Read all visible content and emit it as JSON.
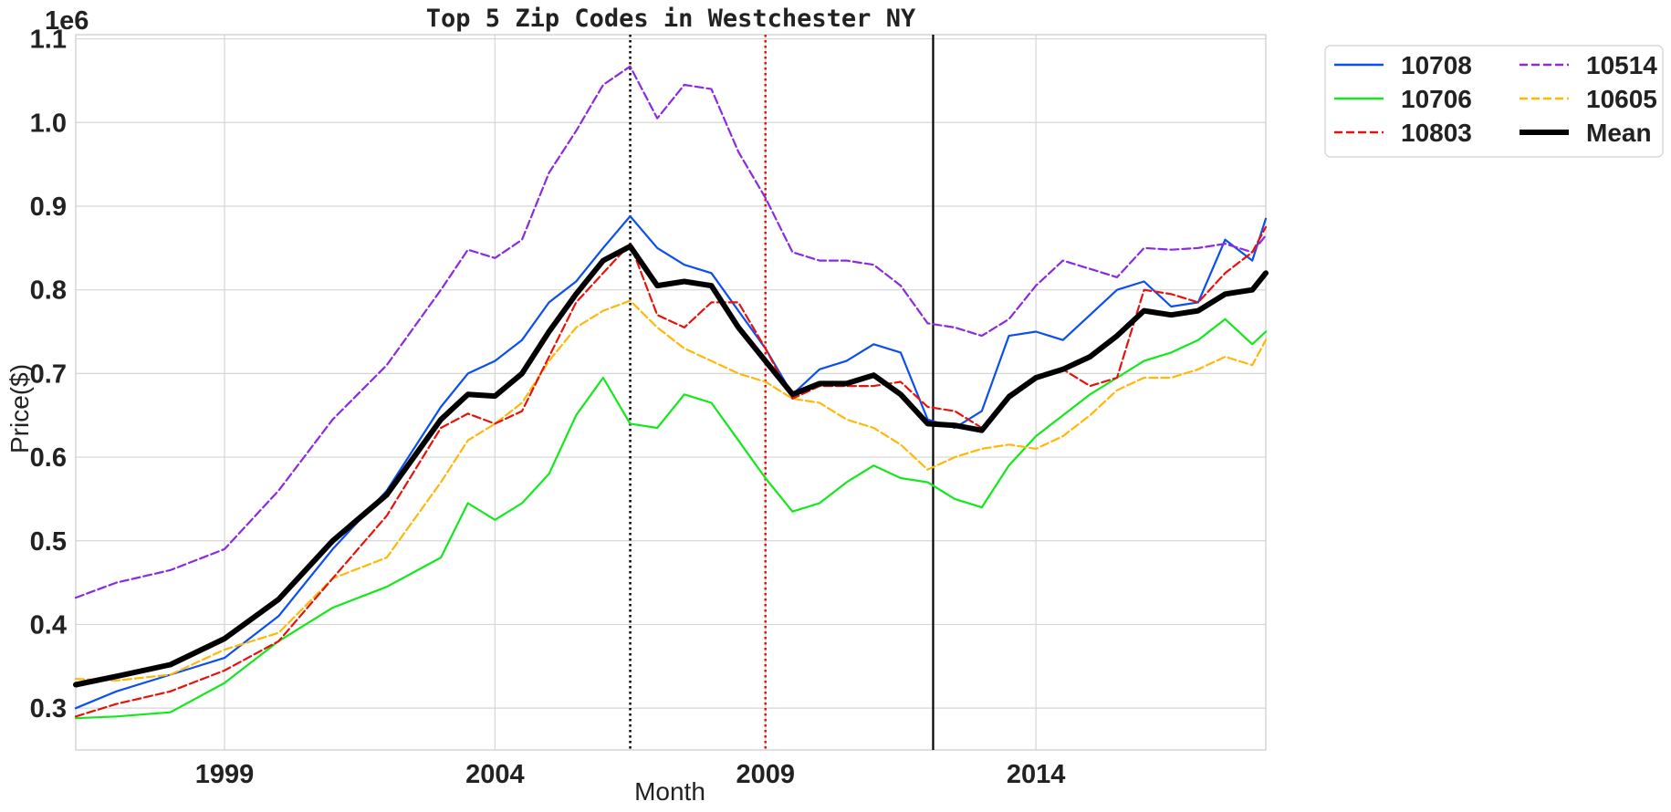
{
  "chart_data": {
    "type": "line",
    "title": "Top 5 Zip Codes in Westchester NY",
    "xlabel": "Month",
    "ylabel": "Price($)",
    "y_multiplier_label": "1e6",
    "xlim": [
      1996.25,
      2018.25
    ],
    "ylim": [
      0.25,
      1.105
    ],
    "x_ticks": [
      1999,
      2004,
      2009,
      2014
    ],
    "y_ticks": [
      0.3,
      0.4,
      0.5,
      0.6,
      0.7,
      0.8,
      0.9,
      1.0,
      1.1
    ],
    "x_tick_labels": [
      "1999",
      "2004",
      "2009",
      "2014"
    ],
    "y_tick_labels": [
      "0.3",
      "0.4",
      "0.5",
      "0.6",
      "0.7",
      "0.8",
      "0.9",
      "1.0",
      "1.1"
    ],
    "grid": true,
    "legend_position": "outside-upper-right",
    "legend_columns": 2,
    "vertical_lines": [
      {
        "x": 2006.5,
        "color": "#000000",
        "style": "dotted"
      },
      {
        "x": 2009.0,
        "color": "#e8120c",
        "style": "dotted"
      },
      {
        "x": 2012.1,
        "color": "#000000",
        "style": "solid"
      }
    ],
    "series": [
      {
        "name": "10708",
        "color": "#0b4ff0",
        "style": "solid",
        "width": 2.2,
        "x": [
          1996.25,
          1997,
          1998,
          1999,
          2000,
          2001,
          2002,
          2003,
          2003.5,
          2004,
          2004.5,
          2005,
          2005.5,
          2006,
          2006.5,
          2007,
          2007.5,
          2008,
          2008.5,
          2009,
          2009.5,
          2010,
          2010.5,
          2011,
          2011.5,
          2012,
          2012.5,
          2013,
          2013.5,
          2014,
          2014.5,
          2015,
          2015.5,
          2016,
          2016.5,
          2017,
          2017.5,
          2018,
          2018.25
        ],
        "y": [
          0.3,
          0.32,
          0.34,
          0.36,
          0.41,
          0.49,
          0.56,
          0.66,
          0.7,
          0.715,
          0.74,
          0.785,
          0.81,
          0.85,
          0.888,
          0.85,
          0.83,
          0.82,
          0.775,
          0.73,
          0.675,
          0.705,
          0.715,
          0.735,
          0.725,
          0.645,
          0.635,
          0.655,
          0.745,
          0.75,
          0.74,
          0.77,
          0.8,
          0.81,
          0.78,
          0.785,
          0.86,
          0.835,
          0.885
        ]
      },
      {
        "name": "10514",
        "color": "#8a2be2",
        "style": "dashed",
        "width": 2.2,
        "x": [
          1996.25,
          1997,
          1998,
          1999,
          2000,
          2001,
          2002,
          2003,
          2003.5,
          2004,
          2004.5,
          2005,
          2005.5,
          2006,
          2006.5,
          2007,
          2007.5,
          2008,
          2008.5,
          2009,
          2009.5,
          2010,
          2010.5,
          2011,
          2011.5,
          2012,
          2012.5,
          2013,
          2013.5,
          2014,
          2014.5,
          2015,
          2015.5,
          2016,
          2016.5,
          2017,
          2017.5,
          2018,
          2018.25
        ],
        "y": [
          0.432,
          0.45,
          0.465,
          0.49,
          0.56,
          0.645,
          0.71,
          0.8,
          0.848,
          0.838,
          0.86,
          0.94,
          0.99,
          1.045,
          1.067,
          1.005,
          1.045,
          1.04,
          0.965,
          0.91,
          0.845,
          0.835,
          0.835,
          0.83,
          0.805,
          0.76,
          0.755,
          0.745,
          0.765,
          0.805,
          0.835,
          0.825,
          0.815,
          0.85,
          0.848,
          0.85,
          0.855,
          0.845,
          0.865
        ]
      },
      {
        "name": "10706",
        "color": "#14e81c",
        "style": "solid",
        "width": 2.2,
        "x": [
          1996.25,
          1997,
          1998,
          1999,
          2000,
          2001,
          2002,
          2003,
          2003.5,
          2004,
          2004.5,
          2005,
          2005.5,
          2006,
          2006.5,
          2007,
          2007.5,
          2008,
          2008.5,
          2009,
          2009.5,
          2010,
          2010.5,
          2011,
          2011.5,
          2012,
          2012.5,
          2013,
          2013.5,
          2014,
          2014.5,
          2015,
          2015.5,
          2016,
          2016.5,
          2017,
          2017.5,
          2018,
          2018.25
        ],
        "y": [
          0.288,
          0.29,
          0.295,
          0.33,
          0.38,
          0.42,
          0.445,
          0.48,
          0.545,
          0.525,
          0.545,
          0.58,
          0.65,
          0.695,
          0.64,
          0.635,
          0.675,
          0.665,
          0.62,
          0.575,
          0.535,
          0.545,
          0.57,
          0.59,
          0.575,
          0.57,
          0.55,
          0.54,
          0.59,
          0.625,
          0.65,
          0.675,
          0.695,
          0.715,
          0.725,
          0.74,
          0.765,
          0.735,
          0.75
        ]
      },
      {
        "name": "10605",
        "color": "#ffb808",
        "style": "dashed",
        "width": 2.2,
        "x": [
          1996.25,
          1997,
          1998,
          1999,
          2000,
          2001,
          2002,
          2003,
          2003.5,
          2004,
          2004.5,
          2005,
          2005.5,
          2006,
          2006.5,
          2007,
          2007.5,
          2008,
          2008.5,
          2009,
          2009.5,
          2010,
          2010.5,
          2011,
          2011.5,
          2012,
          2012.5,
          2013,
          2013.5,
          2014,
          2014.5,
          2015,
          2015.5,
          2016,
          2016.5,
          2017,
          2017.5,
          2018,
          2018.25
        ],
        "y": [
          0.335,
          0.333,
          0.34,
          0.37,
          0.39,
          0.455,
          0.48,
          0.57,
          0.62,
          0.64,
          0.665,
          0.715,
          0.755,
          0.775,
          0.787,
          0.755,
          0.73,
          0.715,
          0.7,
          0.69,
          0.67,
          0.665,
          0.645,
          0.635,
          0.615,
          0.585,
          0.6,
          0.61,
          0.615,
          0.61,
          0.625,
          0.65,
          0.68,
          0.695,
          0.695,
          0.705,
          0.72,
          0.71,
          0.74
        ]
      },
      {
        "name": "10803",
        "color": "#e8120c",
        "style": "dashed",
        "width": 2.2,
        "x": [
          1996.25,
          1997,
          1998,
          1999,
          2000,
          2001,
          2002,
          2003,
          2003.5,
          2004,
          2004.5,
          2005,
          2005.5,
          2006,
          2006.5,
          2007,
          2007.5,
          2008,
          2008.5,
          2009,
          2009.5,
          2010,
          2010.5,
          2011,
          2011.5,
          2012,
          2012.5,
          2013,
          2013.5,
          2014,
          2014.5,
          2015,
          2015.5,
          2016,
          2016.5,
          2017,
          2017.5,
          2018,
          2018.25
        ],
        "y": [
          0.29,
          0.305,
          0.32,
          0.345,
          0.38,
          0.455,
          0.53,
          0.635,
          0.652,
          0.64,
          0.655,
          0.72,
          0.785,
          0.82,
          0.855,
          0.77,
          0.755,
          0.785,
          0.785,
          0.73,
          0.67,
          0.685,
          0.685,
          0.685,
          0.69,
          0.66,
          0.655,
          0.635,
          0.675,
          0.695,
          0.705,
          0.685,
          0.695,
          0.8,
          0.795,
          0.785,
          0.82,
          0.845,
          0.875
        ]
      },
      {
        "name": "Mean",
        "color": "#000000",
        "style": "solid",
        "width": 6,
        "x": [
          1996.25,
          1997,
          1998,
          1999,
          2000,
          2001,
          2002,
          2003,
          2003.5,
          2004,
          2004.5,
          2005,
          2005.5,
          2006,
          2006.5,
          2007,
          2007.5,
          2008,
          2008.5,
          2009,
          2009.5,
          2010,
          2010.5,
          2011,
          2011.5,
          2012,
          2012.5,
          2013,
          2013.5,
          2014,
          2014.5,
          2015,
          2015.5,
          2016,
          2016.5,
          2017,
          2017.5,
          2018,
          2018.25
        ],
        "y": [
          0.328,
          0.338,
          0.352,
          0.383,
          0.43,
          0.5,
          0.555,
          0.645,
          0.675,
          0.673,
          0.7,
          0.75,
          0.795,
          0.835,
          0.852,
          0.805,
          0.81,
          0.805,
          0.755,
          0.715,
          0.675,
          0.688,
          0.688,
          0.698,
          0.675,
          0.64,
          0.638,
          0.632,
          0.672,
          0.695,
          0.705,
          0.72,
          0.745,
          0.775,
          0.77,
          0.775,
          0.795,
          0.8,
          0.82
        ]
      }
    ]
  }
}
